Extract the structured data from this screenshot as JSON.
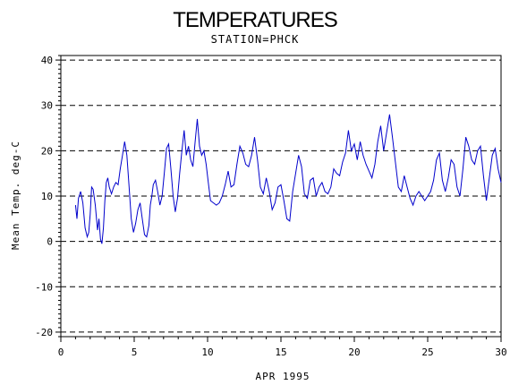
{
  "chart_data": {
    "type": "line",
    "title": "TEMPERATURES",
    "subtitle": "STATION=PHCK",
    "xlabel": "APR 1995",
    "ylabel": "Mean Temp. deg-C",
    "xlim": [
      0,
      30
    ],
    "ylim": [
      -21,
      41
    ],
    "x_ticks": [
      0,
      5,
      10,
      15,
      20,
      25,
      30
    ],
    "x_tick_labels": [
      "0",
      "5",
      "10",
      "15",
      "20",
      "25",
      "30"
    ],
    "y_ticks": [
      -20,
      -10,
      0,
      10,
      20,
      30,
      40
    ],
    "y_tick_labels": [
      "-20",
      "-10",
      "0",
      "10",
      "20",
      "30",
      "40"
    ],
    "grid": "dashed horizontal at y ticks",
    "legend": "none",
    "series": [
      {
        "color": "#0000cc",
        "x": [
          1.0,
          1.1,
          1.2,
          1.35,
          1.5,
          1.65,
          1.8,
          1.9,
          2.0,
          2.1,
          2.2,
          2.35,
          2.5,
          2.6,
          2.7,
          2.8,
          2.9,
          3.0,
          3.1,
          3.2,
          3.3,
          3.45,
          3.6,
          3.75,
          3.9,
          4.05,
          4.2,
          4.35,
          4.5,
          4.65,
          4.8,
          4.95,
          5.1,
          5.25,
          5.4,
          5.55,
          5.7,
          5.85,
          6.0,
          6.1,
          6.2,
          6.3,
          6.45,
          6.6,
          6.75,
          6.9,
          7.05,
          7.2,
          7.35,
          7.5,
          7.65,
          7.8,
          7.95,
          8.1,
          8.25,
          8.4,
          8.55,
          8.7,
          8.85,
          9.0,
          9.15,
          9.3,
          9.45,
          9.6,
          9.75,
          9.9,
          10.05,
          10.2,
          10.4,
          10.6,
          10.8,
          11.0,
          11.2,
          11.4,
          11.6,
          11.8,
          12.0,
          12.2,
          12.4,
          12.6,
          12.8,
          13.0,
          13.2,
          13.4,
          13.6,
          13.8,
          14.0,
          14.2,
          14.4,
          14.6,
          14.8,
          15.0,
          15.2,
          15.4,
          15.6,
          15.8,
          16.0,
          16.2,
          16.4,
          16.6,
          16.8,
          17.0,
          17.2,
          17.4,
          17.6,
          17.8,
          18.0,
          18.2,
          18.4,
          18.6,
          18.8,
          19.0,
          19.2,
          19.4,
          19.6,
          19.8,
          20.0,
          20.2,
          20.4,
          20.6,
          20.8,
          21.0,
          21.2,
          21.4,
          21.6,
          21.8,
          22.0,
          22.2,
          22.4,
          22.6,
          22.8,
          23.0,
          23.2,
          23.4,
          23.6,
          23.8,
          24.0,
          24.2,
          24.4,
          24.6,
          24.8,
          25.0,
          25.2,
          25.4,
          25.6,
          25.8,
          26.0,
          26.2,
          26.4,
          26.6,
          26.8,
          27.0,
          27.2,
          27.4,
          27.6,
          27.8,
          28.0,
          28.2,
          28.4,
          28.6,
          28.8,
          29.0,
          29.2,
          29.4,
          29.6,
          29.8,
          30.0
        ],
        "y": [
          8.0,
          5.0,
          9.5,
          11.0,
          8.5,
          3.0,
          1.0,
          2.0,
          6.0,
          12.0,
          11.5,
          8.0,
          2.5,
          5.0,
          0.5,
          -0.5,
          3.0,
          9.0,
          13.0,
          14.0,
          12.0,
          10.5,
          12.0,
          13.0,
          12.5,
          16.0,
          19.0,
          22.0,
          19.0,
          12.0,
          5.0,
          2.0,
          4.0,
          7.0,
          8.5,
          5.0,
          1.5,
          1.0,
          3.5,
          8.0,
          10.0,
          12.5,
          13.5,
          11.0,
          8.0,
          10.0,
          15.0,
          20.5,
          21.5,
          16.0,
          10.0,
          6.5,
          9.5,
          15.0,
          20.0,
          24.5,
          19.0,
          21.0,
          18.0,
          16.5,
          22.0,
          27.0,
          21.0,
          19.0,
          20.0,
          17.0,
          13.0,
          9.0,
          8.5,
          8.0,
          8.5,
          10.0,
          12.5,
          15.5,
          12.0,
          12.5,
          17.0,
          21.0,
          19.5,
          17.0,
          16.5,
          19.0,
          23.0,
          18.0,
          12.0,
          10.5,
          14.0,
          11.0,
          7.0,
          8.5,
          12.0,
          12.5,
          9.0,
          5.0,
          4.5,
          11.0,
          15.0,
          19.0,
          16.5,
          10.5,
          9.5,
          13.5,
          14.0,
          10.0,
          12.0,
          13.0,
          11.0,
          10.5,
          12.0,
          16.0,
          15.0,
          14.5,
          17.5,
          19.5,
          24.5,
          20.0,
          21.5,
          18.0,
          22.0,
          19.0,
          17.0,
          15.5,
          14.0,
          17.0,
          22.0,
          25.5,
          20.0,
          24.0,
          28.0,
          23.0,
          17.5,
          12.0,
          11.0,
          14.5,
          12.0,
          9.5,
          8.0,
          10.0,
          11.0,
          10.0,
          9.0,
          10.0,
          11.0,
          13.5,
          18.0,
          19.5,
          13.5,
          11.0,
          14.0,
          18.0,
          17.0,
          12.0,
          10.0,
          16.0,
          23.0,
          21.0,
          18.0,
          17.0,
          20.0,
          21.0,
          14.5,
          9.0,
          14.0,
          19.0,
          20.5,
          16.0,
          13.0
        ]
      }
    ]
  }
}
